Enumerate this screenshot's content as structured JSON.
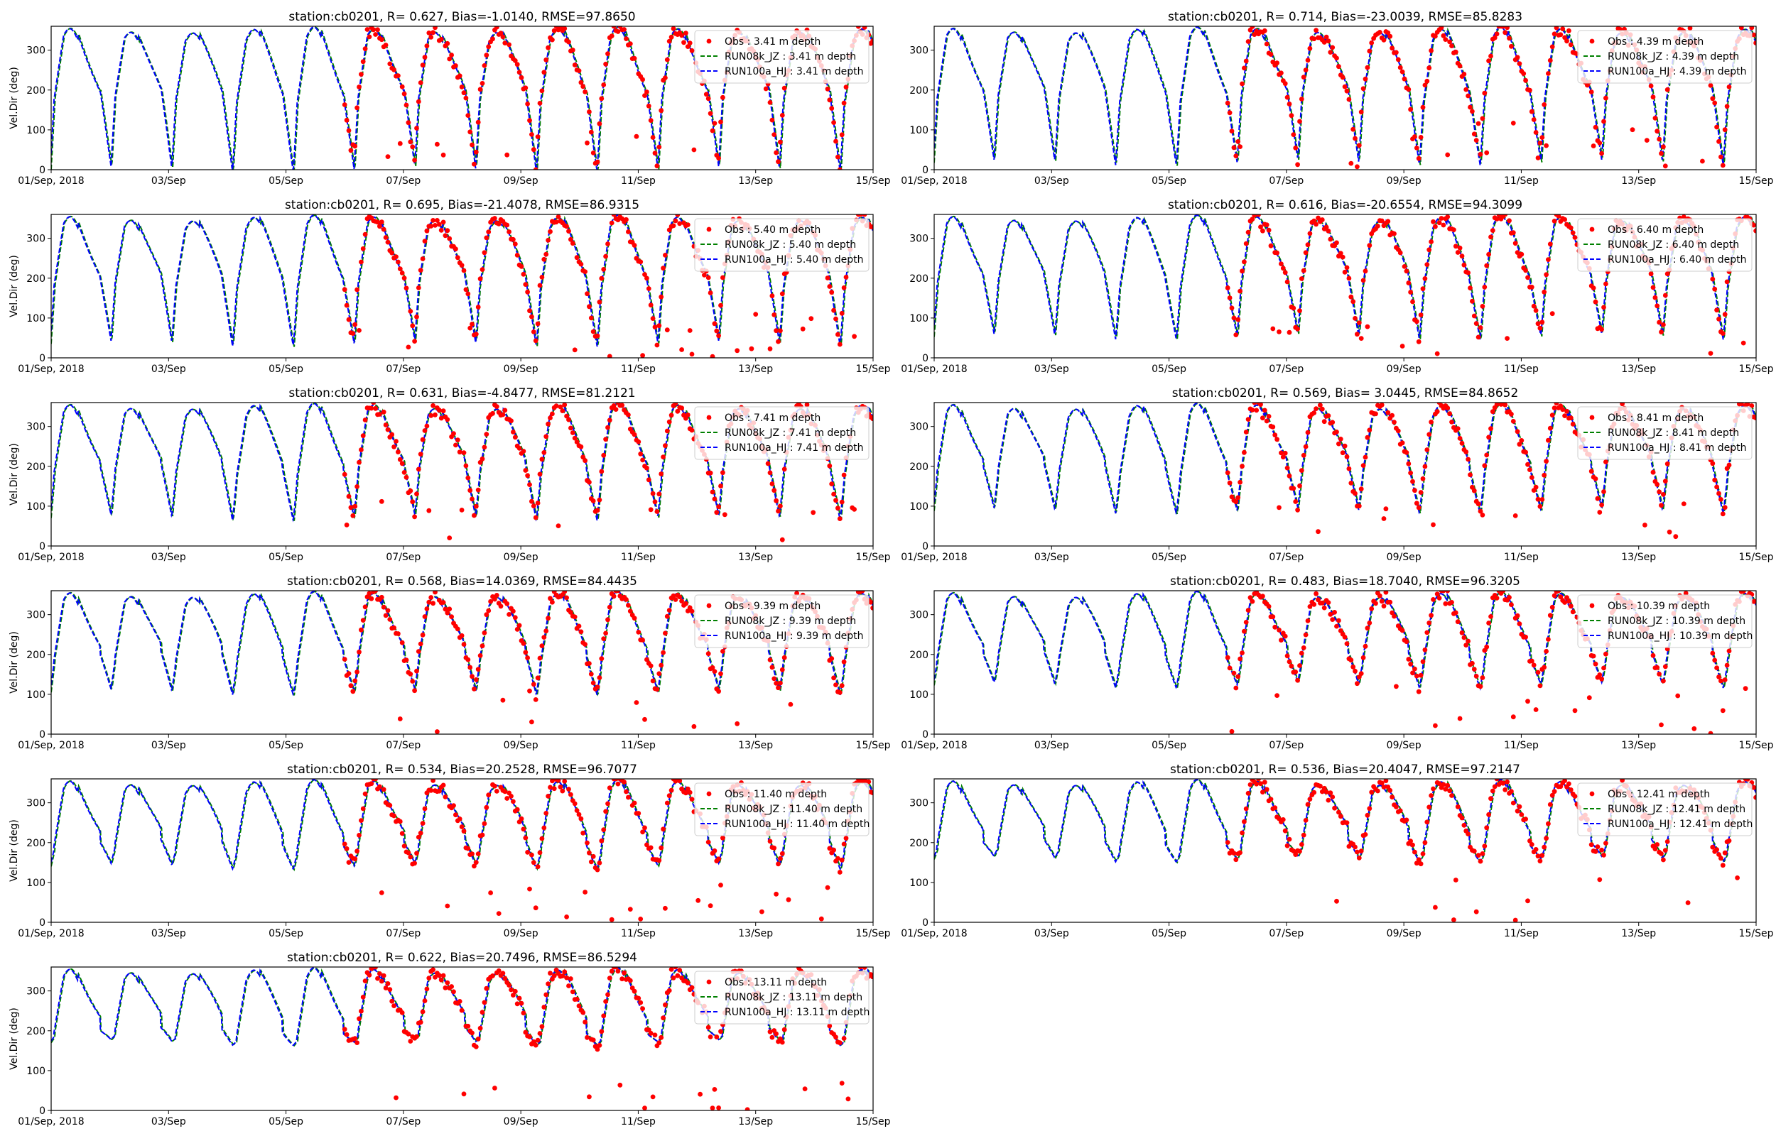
{
  "figure": {
    "xtick_labels": [
      "01/Sep, 2018",
      "03/Sep",
      "05/Sep",
      "07/Sep",
      "09/Sep",
      "11/Sep",
      "13/Sep",
      "15/Sep"
    ],
    "ytick_labels": [
      "0",
      "100",
      "200",
      "300"
    ],
    "ylabel": "Vel.Dir (deg)",
    "colors": {
      "obs": "#ff0000",
      "run08k": "#008000",
      "run100a": "#0000ff"
    }
  },
  "chart_data": [
    {
      "type": "line",
      "title": "station:cb0201, R= 0.627, Bias=-1.0140, RMSE=97.8650",
      "depth": 3.41,
      "legend": [
        "Obs : 3.41 m depth",
        "RUN08k_JZ : 3.41 m depth",
        "RUN100a_HJ : 3.41 m depth"
      ],
      "xlabel": "",
      "ylabel": "Vel.Dir (deg)",
      "xlim": [
        "2018-09-01",
        "2018-09-15"
      ],
      "ylim": [
        0,
        360
      ],
      "legend_loc": "upper right",
      "obs_start": "2018-09-06"
    },
    {
      "type": "line",
      "title": "station:cb0201, R= 0.714, Bias=-23.0039, RMSE=85.8283",
      "depth": 4.39,
      "legend": [
        "Obs : 4.39 m depth",
        "RUN08k_JZ : 4.39 m depth",
        "RUN100a_HJ : 4.39 m depth"
      ],
      "xlabel": "",
      "ylabel": "",
      "xlim": [
        "2018-09-01",
        "2018-09-15"
      ],
      "ylim": [
        0,
        360
      ],
      "legend_loc": "upper right",
      "obs_start": "2018-09-06"
    },
    {
      "type": "line",
      "title": "station:cb0201, R= 0.695, Bias=-21.4078, RMSE=86.9315",
      "depth": 5.4,
      "legend": [
        "Obs : 5.40 m depth",
        "RUN08k_JZ : 5.40 m depth",
        "RUN100a_HJ : 5.40 m depth"
      ],
      "xlabel": "",
      "ylabel": "Vel.Dir (deg)",
      "xlim": [
        "2018-09-01",
        "2018-09-15"
      ],
      "ylim": [
        0,
        360
      ],
      "legend_loc": "upper right",
      "obs_start": "2018-09-06"
    },
    {
      "type": "line",
      "title": "station:cb0201, R= 0.616, Bias=-20.6554, RMSE=94.3099",
      "depth": 6.4,
      "legend": [
        "Obs : 6.40 m depth",
        "RUN08k_JZ : 6.40 m depth",
        "RUN100a_HJ : 6.40 m depth"
      ],
      "xlabel": "",
      "ylabel": "",
      "xlim": [
        "2018-09-01",
        "2018-09-15"
      ],
      "ylim": [
        0,
        360
      ],
      "legend_loc": "upper right",
      "obs_start": "2018-09-06"
    },
    {
      "type": "line",
      "title": "station:cb0201, R= 0.631, Bias=-4.8477, RMSE=81.2121",
      "depth": 7.41,
      "legend": [
        "Obs : 7.41 m depth",
        "RUN08k_JZ : 7.41 m depth",
        "RUN100a_HJ : 7.41 m depth"
      ],
      "xlabel": "",
      "ylabel": "Vel.Dir (deg)",
      "xlim": [
        "2018-09-01",
        "2018-09-15"
      ],
      "ylim": [
        0,
        360
      ],
      "legend_loc": "upper right",
      "obs_start": "2018-09-06"
    },
    {
      "type": "line",
      "title": "station:cb0201, R= 0.569, Bias= 3.0445, RMSE=84.8652",
      "depth": 8.41,
      "legend": [
        "Obs : 8.41 m depth",
        "RUN08k_JZ : 8.41 m depth",
        "RUN100a_HJ : 8.41 m depth"
      ],
      "xlabel": "",
      "ylabel": "",
      "xlim": [
        "2018-09-01",
        "2018-09-15"
      ],
      "ylim": [
        0,
        360
      ],
      "legend_loc": "upper right",
      "obs_start": "2018-09-06"
    },
    {
      "type": "line",
      "title": "station:cb0201, R= 0.568, Bias=14.0369, RMSE=84.4435",
      "depth": 9.39,
      "legend": [
        "Obs : 9.39 m depth",
        "RUN08k_JZ : 9.39 m depth",
        "RUN100a_HJ : 9.39 m depth"
      ],
      "xlabel": "",
      "ylabel": "Vel.Dir (deg)",
      "xlim": [
        "2018-09-01",
        "2018-09-15"
      ],
      "ylim": [
        0,
        360
      ],
      "legend_loc": "upper right",
      "obs_start": "2018-09-06"
    },
    {
      "type": "line",
      "title": "station:cb0201, R= 0.483, Bias=18.7040, RMSE=96.3205",
      "depth": 10.39,
      "legend": [
        "Obs : 10.39 m depth",
        "RUN08k_JZ : 10.39 m depth",
        "RUN100a_HJ : 10.39 m depth"
      ],
      "xlabel": "",
      "ylabel": "",
      "xlim": [
        "2018-09-01",
        "2018-09-15"
      ],
      "ylim": [
        0,
        360
      ],
      "legend_loc": "upper right",
      "obs_start": "2018-09-06"
    },
    {
      "type": "line",
      "title": "station:cb0201, R= 0.534, Bias=20.2528, RMSE=96.7077",
      "depth": 11.4,
      "legend": [
        "Obs : 11.40 m depth",
        "RUN08k_JZ : 11.40 m depth",
        "RUN100a_HJ : 11.40 m depth"
      ],
      "xlabel": "",
      "ylabel": "Vel.Dir (deg)",
      "xlim": [
        "2018-09-01",
        "2018-09-15"
      ],
      "ylim": [
        0,
        360
      ],
      "legend_loc": "upper right",
      "obs_start": "2018-09-06"
    },
    {
      "type": "line",
      "title": "station:cb0201, R= 0.536, Bias=20.4047, RMSE=97.2147",
      "depth": 12.41,
      "legend": [
        "Obs : 12.41 m depth",
        "RUN08k_JZ : 12.41 m depth",
        "RUN100a_HJ : 12.41 m depth"
      ],
      "xlabel": "",
      "ylabel": "",
      "xlim": [
        "2018-09-01",
        "2018-09-15"
      ],
      "ylim": [
        0,
        360
      ],
      "legend_loc": "upper right",
      "obs_start": "2018-09-06"
    },
    {
      "type": "line",
      "title": "station:cb0201, R= 0.622, Bias=20.7496, RMSE=86.5294",
      "depth": 13.11,
      "legend": [
        "Obs : 13.11 m depth",
        "RUN08k_JZ : 13.11 m depth",
        "RUN100a_HJ : 13.11 m depth"
      ],
      "xlabel": "",
      "ylabel": "Vel.Dir (deg)",
      "xlim": [
        "2018-09-01",
        "2018-09-15"
      ],
      "ylim": [
        0,
        360
      ],
      "legend_loc": "upper right",
      "obs_start": "2018-09-06"
    }
  ]
}
